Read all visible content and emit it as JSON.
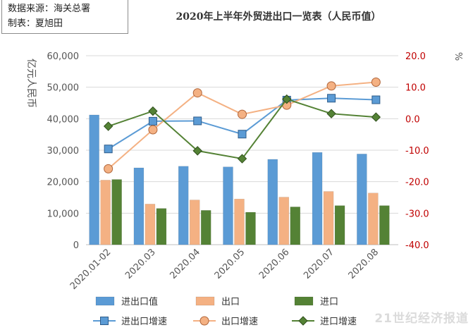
{
  "source": {
    "line1": "数据来源：海关总署",
    "line2": "制表：夏旭田"
  },
  "watermark": "21世纪经济报道",
  "colors": {
    "total": "#5b9bd5",
    "export": "#f4b183",
    "import": "#548235",
    "total_growth": "#5b9bd5",
    "export_growth": "#f4b183",
    "import_growth": "#548235",
    "right_axis_text": "#c00000"
  },
  "chart_data": {
    "type": "bar",
    "title": "2020年上半年外贸进出口一览表（人民币值）",
    "ylabel": "亿元人民币",
    "y2label": "%",
    "categories": [
      "2020.01-02",
      "2020.03",
      "2020.04",
      "2020.05",
      "2020.06",
      "2020.07",
      "2020.08"
    ],
    "ylim": [
      0,
      60000
    ],
    "yticks": [
      "0",
      "10,000",
      "20,000",
      "30,000",
      "40,000",
      "50,000",
      "60,000"
    ],
    "y2lim": [
      -40,
      20
    ],
    "y2ticks": [
      "-40.0",
      "-30.0",
      "-20.0",
      "-10.0",
      "0.0",
      "10.0",
      "20.0"
    ],
    "grid": true,
    "legend_position": "bottom",
    "bar_series": [
      {
        "name": "进出口值",
        "values": [
          41200,
          24400,
          24900,
          24700,
          27100,
          29300,
          28800
        ]
      },
      {
        "name": "出口",
        "values": [
          20500,
          12900,
          14200,
          14500,
          15100,
          16900,
          16400
        ]
      },
      {
        "name": "进口",
        "values": [
          20700,
          11500,
          10900,
          10300,
          12000,
          12400,
          12400
        ]
      }
    ],
    "line_series": [
      {
        "name": "进出口增速",
        "marker": "square",
        "values": [
          -9.6,
          -0.8,
          -0.7,
          -4.9,
          5.9,
          6.5,
          6.0
        ]
      },
      {
        "name": "出口增速",
        "marker": "circle",
        "values": [
          -15.9,
          -3.5,
          8.2,
          1.4,
          4.3,
          10.4,
          11.6
        ]
      },
      {
        "name": "进口增速",
        "marker": "diamond",
        "values": [
          -2.4,
          2.4,
          -10.2,
          -12.7,
          6.2,
          1.6,
          0.5
        ]
      }
    ]
  }
}
